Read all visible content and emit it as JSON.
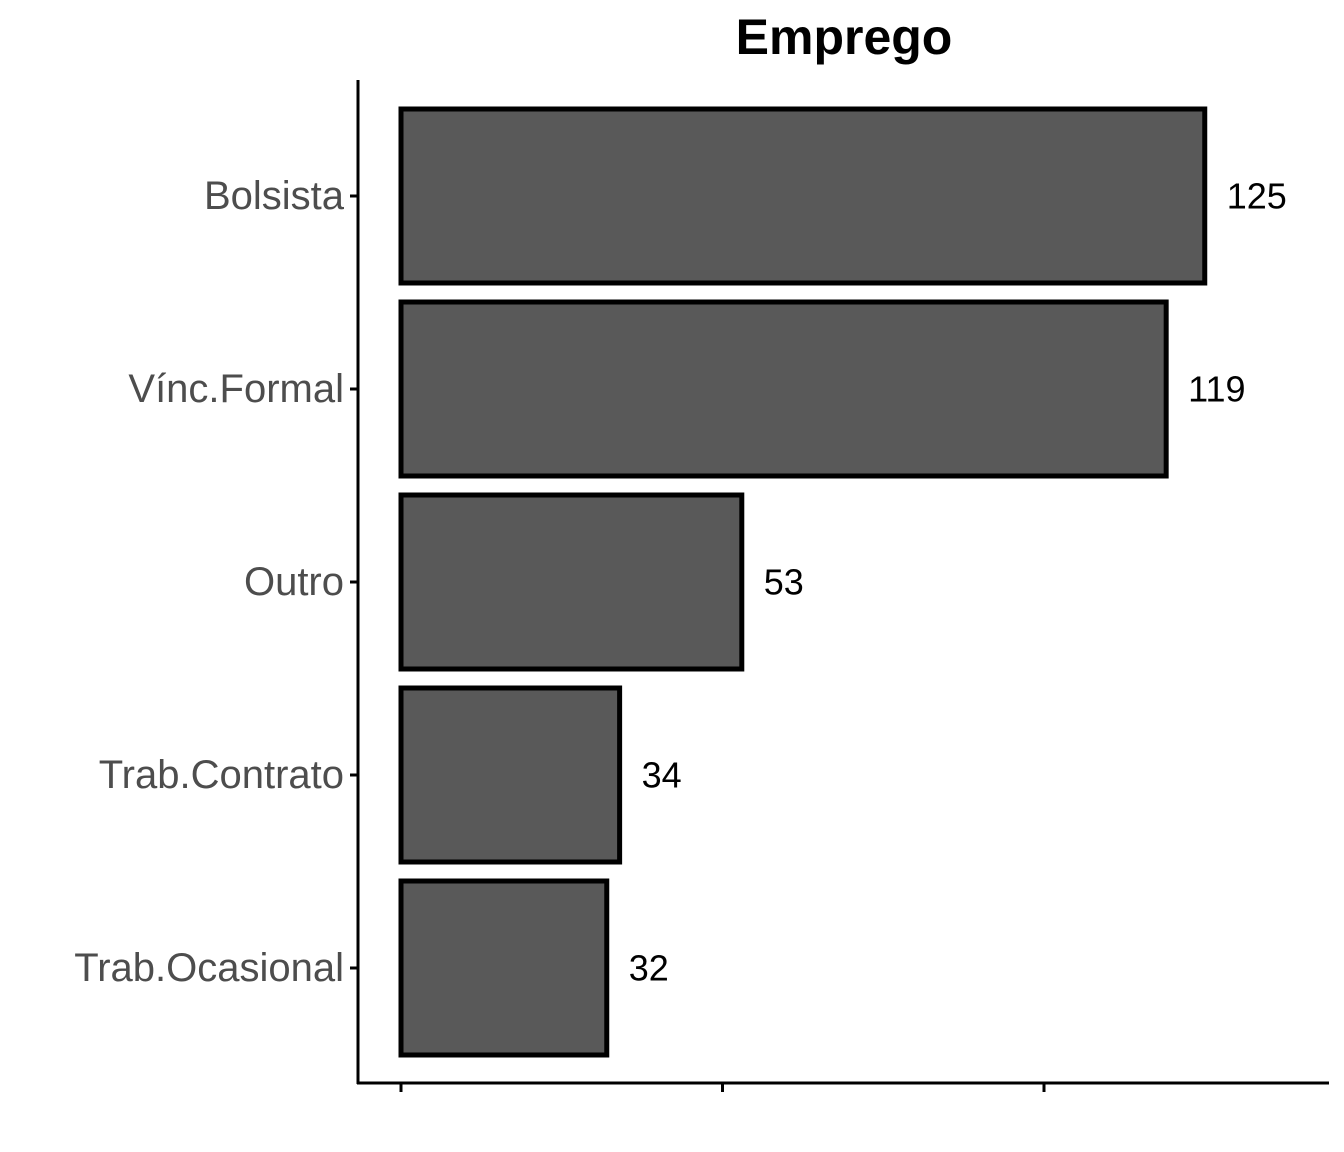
{
  "chart_data": {
    "type": "bar",
    "orientation": "horizontal",
    "title": "Emprego",
    "xlabel": "",
    "ylabel": "",
    "categories": [
      "Bolsista",
      "Vínc.Formal",
      "Outro",
      "Trab.Contrato",
      "Trab.Ocasional"
    ],
    "values": [
      125,
      119,
      53,
      34,
      32
    ],
    "data_labels": [
      "125",
      "119",
      "53",
      "34",
      "32"
    ],
    "xlim": [
      0,
      143
    ],
    "x_ticks": [
      0,
      50,
      100
    ],
    "x_tick_labels_shown": false,
    "grid": false,
    "legend": "none",
    "bar_fill": "#595959",
    "bar_stroke": "#000000"
  }
}
